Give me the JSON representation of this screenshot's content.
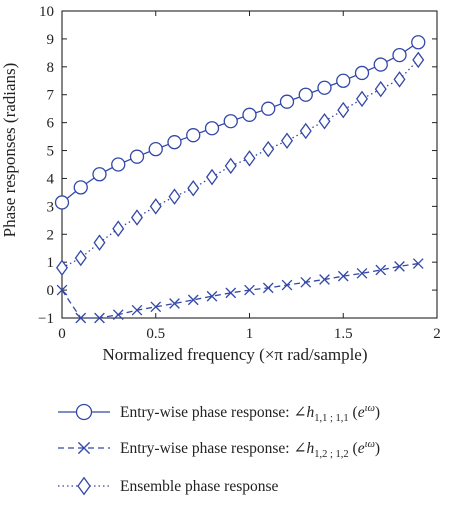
{
  "chart_data": {
    "type": "line",
    "xlabel": "Normalized frequency (×π rad/sample)",
    "ylabel": "Phase responses (radians)",
    "xlim": [
      0,
      2
    ],
    "ylim": [
      -1,
      10
    ],
    "xticks": [
      "0",
      "0.5",
      "1",
      "1.5",
      "2"
    ],
    "yticks": [
      "−1",
      "0",
      "1",
      "2",
      "3",
      "4",
      "5",
      "6",
      "7",
      "8",
      "9",
      "10"
    ],
    "grid": false,
    "legend_position": "bottom",
    "colors": {
      "series": "#3348a8",
      "axis": "#222222"
    },
    "series": [
      {
        "name": "Entry-wise phase response: ∠h1,1 ; 1,1 (eιω)",
        "legend_prefix": "Entry-wise phase response: ∠",
        "legend_var": "h",
        "legend_sub": "1,1 ; 1,1",
        "legend_arg": "e",
        "legend_sup": "ιω",
        "marker": "circle",
        "linestyle": "solid",
        "x": [
          0,
          0.1,
          0.2,
          0.3,
          0.4,
          0.5,
          0.6,
          0.7,
          0.8,
          0.9,
          1.0,
          1.1,
          1.2,
          1.3,
          1.4,
          1.5,
          1.6,
          1.7,
          1.8,
          1.9
        ],
        "values": [
          3.14,
          3.68,
          4.15,
          4.5,
          4.78,
          5.05,
          5.3,
          5.55,
          5.8,
          6.05,
          6.28,
          6.5,
          6.75,
          7.0,
          7.25,
          7.5,
          7.78,
          8.08,
          8.42,
          8.88
        ]
      },
      {
        "name": "Entry-wise phase response: ∠h1,2 ; 1,2 (eιω)",
        "legend_prefix": "Entry-wise phase response: ∠",
        "legend_var": "h",
        "legend_sub": "1,2 ; 1,2",
        "legend_arg": "e",
        "legend_sup": "ιω",
        "marker": "x",
        "linestyle": "dashed",
        "x": [
          0,
          0.1,
          0.2,
          0.3,
          0.4,
          0.5,
          0.6,
          0.7,
          0.8,
          0.9,
          1.0,
          1.1,
          1.2,
          1.3,
          1.4,
          1.5,
          1.6,
          1.7,
          1.8,
          1.9
        ],
        "values": [
          0.0,
          -1.0,
          -1.0,
          -0.88,
          -0.72,
          -0.6,
          -0.48,
          -0.35,
          -0.22,
          -0.1,
          0.0,
          0.08,
          0.18,
          0.28,
          0.38,
          0.5,
          0.6,
          0.72,
          0.85,
          0.95
        ]
      },
      {
        "name": "Ensemble phase response",
        "legend_prefix": "Ensemble phase response",
        "marker": "diamond",
        "linestyle": "dotted",
        "x": [
          0,
          0.1,
          0.2,
          0.3,
          0.4,
          0.5,
          0.6,
          0.7,
          0.8,
          0.9,
          1.0,
          1.1,
          1.2,
          1.3,
          1.4,
          1.5,
          1.6,
          1.7,
          1.8,
          1.9
        ],
        "values": [
          0.8,
          1.15,
          1.7,
          2.2,
          2.6,
          3.0,
          3.35,
          3.65,
          4.05,
          4.45,
          4.72,
          5.05,
          5.35,
          5.7,
          6.05,
          6.45,
          6.85,
          7.2,
          7.55,
          8.25
        ]
      }
    ]
  }
}
